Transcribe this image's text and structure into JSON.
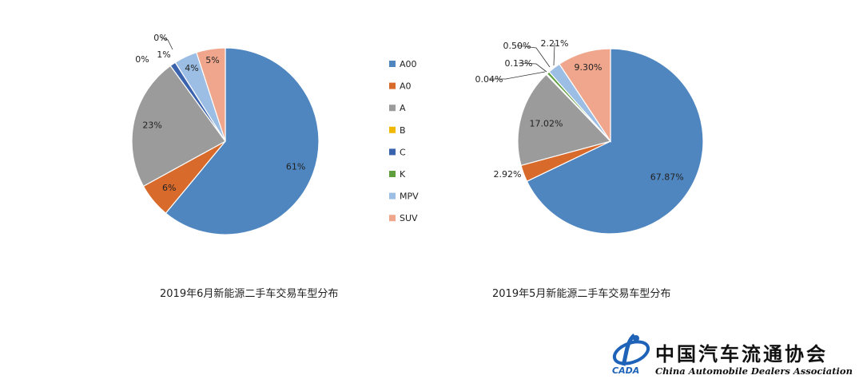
{
  "chart_data": [
    {
      "type": "pie",
      "title": "2019年6月新能源二手车交易车型分布",
      "categories": [
        "A00",
        "A0",
        "A",
        "B",
        "C",
        "K",
        "MPV",
        "SUV"
      ],
      "values": [
        61,
        6,
        23,
        0,
        1,
        0,
        4,
        5
      ],
      "labels": [
        "61%",
        "6%",
        "23%",
        "0%",
        "1%",
        "0%",
        "4%",
        "5%"
      ],
      "legend_position": "right"
    },
    {
      "type": "pie",
      "title": "2019年5月新能源二手车交易车型分布",
      "categories": [
        "A00",
        "A0",
        "A",
        "B",
        "C",
        "K",
        "MPV",
        "SUV"
      ],
      "values": [
        67.87,
        2.92,
        17.02,
        0.04,
        0.13,
        0.5,
        2.21,
        9.3
      ],
      "labels": [
        "67.87%",
        "2.92%",
        "17.02%",
        "0.04%",
        "0.13%",
        "0.50%",
        "2.21%",
        "9.30%"
      ]
    }
  ],
  "legend": {
    "items": [
      {
        "label": "A00",
        "color": "#4f86c0"
      },
      {
        "label": "A0",
        "color": "#d86a2b"
      },
      {
        "label": "A",
        "color": "#9b9b9b"
      },
      {
        "label": "B",
        "color": "#f0b800"
      },
      {
        "label": "C",
        "color": "#3a62ad"
      },
      {
        "label": "K",
        "color": "#5e9e3d"
      },
      {
        "label": "MPV",
        "color": "#9cbde4"
      },
      {
        "label": "SUV",
        "color": "#f0a68c"
      }
    ]
  },
  "logo": {
    "name_cn": "中国汽车流通协会",
    "name_en": "China Automobile Dealers Association",
    "abbr": "CADA"
  }
}
